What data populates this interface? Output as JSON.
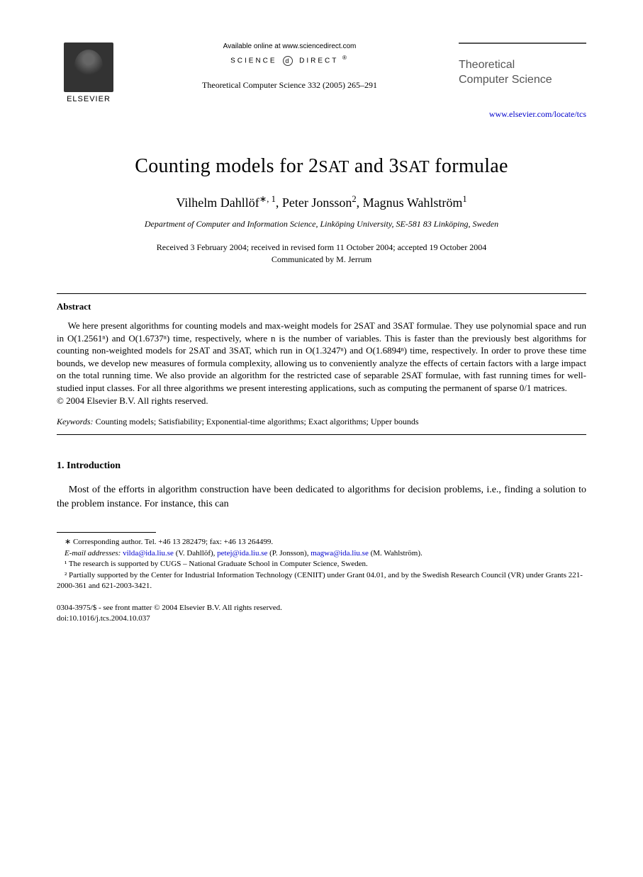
{
  "header": {
    "publisher_name": "ELSEVIER",
    "available_text": "Available online at www.sciencedirect.com",
    "science_direct": "SCIENCE",
    "science_direct2": "DIRECT",
    "journal_reference": "Theoretical Computer Science 332 (2005) 265–291",
    "journal_title_line1": "Theoretical",
    "journal_title_line2": "Computer Science",
    "journal_url": "www.elsevier.com/locate/tcs"
  },
  "title": {
    "prefix": "Counting models for 2",
    "sat1": "SAT",
    "mid": " and 3",
    "sat2": "SAT",
    "suffix": " formulae"
  },
  "authors": {
    "a1_name": "Vilhelm Dahllöf",
    "a1_sup": "∗, 1",
    "a2_name": "Peter Jonsson",
    "a2_sup": "2",
    "a3_name": "Magnus Wahlström",
    "a3_sup": "1"
  },
  "affiliation": "Department of Computer and Information Science, Linköping University, SE-581 83 Linköping, Sweden",
  "dates": "Received 3 February 2004; received in revised form 11 October 2004; accepted 19 October 2004",
  "communicated": "Communicated by M. Jerrum",
  "abstract": {
    "heading": "Abstract",
    "text": "We here present algorithms for counting models and max-weight models for 2SAT and 3SAT formulae. They use polynomial space and run in O(1.2561ⁿ) and O(1.6737ⁿ) time, respectively, where n is the number of variables. This is faster than the previously best algorithms for counting non-weighted models for 2SAT and 3SAT, which run in O(1.3247ⁿ) and O(1.6894ⁿ) time, respectively. In order to prove these time bounds, we develop new measures of formula complexity, allowing us to conveniently analyze the effects of certain factors with a large impact on the total running time. We also provide an algorithm for the restricted case of separable 2SAT formulae, with fast running times for well-studied input classes. For all three algorithms we present interesting applications, such as computing the permanent of sparse 0/1 matrices.",
    "copyright": "© 2004 Elsevier B.V. All rights reserved."
  },
  "keywords": {
    "label": "Keywords:",
    "text": " Counting models; Satisfiability; Exponential-time algorithms; Exact algorithms; Upper bounds"
  },
  "section1": {
    "heading": "1. Introduction",
    "text": "Most of the efforts in algorithm construction have been dedicated to algorithms for decision problems, i.e., finding a solution to the problem instance. For instance, this can"
  },
  "footnotes": {
    "corresponding": "∗ Corresponding author. Tel. +46 13 282479; fax: +46 13 264499.",
    "email_label": "E-mail addresses:",
    "email1": "vilda@ida.liu.se",
    "email1_name": " (V. Dahllöf), ",
    "email2": "petej@ida.liu.se",
    "email2_name": " (P. Jonsson), ",
    "email3": "magwa@ida.liu.se",
    "email3_name": " (M. Wahlström).",
    "note1": "¹ The research is supported by CUGS – National Graduate School in Computer Science, Sweden.",
    "note2": "² Partially supported by the Center for Industrial Information Technology (CENIIT) under Grant 04.01, and by the Swedish Research Council (VR) under Grants 221-2000-361 and 621-2003-3421."
  },
  "bottom": {
    "front_matter": "0304-3975/$ - see front matter © 2004 Elsevier B.V. All rights reserved.",
    "doi": "doi:10.1016/j.tcs.2004.10.037"
  },
  "styling": {
    "background_color": "#ffffff",
    "text_color": "#000000",
    "link_color": "#0000cc",
    "title_fontsize": 28,
    "author_fontsize": 18,
    "body_fontsize": 14,
    "abstract_fontsize": 13,
    "footnote_fontsize": 11,
    "font_family": "Times New Roman"
  }
}
